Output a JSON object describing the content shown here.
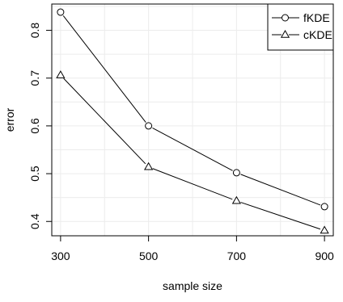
{
  "chart_data": {
    "type": "line",
    "x": [
      300,
      500,
      700,
      900
    ],
    "x_ticks": [
      "300",
      "500",
      "700",
      "900"
    ],
    "y_ticks": [
      "0.4",
      "0.5",
      "0.6",
      "0.7",
      "0.8"
    ],
    "xlabel": "sample size",
    "ylabel": "error",
    "xlim": [
      280,
      920
    ],
    "ylim": [
      0.37,
      0.855
    ],
    "grid": true,
    "legend_position": "top-right",
    "series": [
      {
        "name": "fKDE",
        "marker": "circle",
        "values": [
          0.838,
          0.6,
          0.502,
          0.431
        ]
      },
      {
        "name": "cKDE",
        "marker": "triangle",
        "values": [
          0.706,
          0.514,
          0.443,
          0.381
        ]
      }
    ]
  }
}
